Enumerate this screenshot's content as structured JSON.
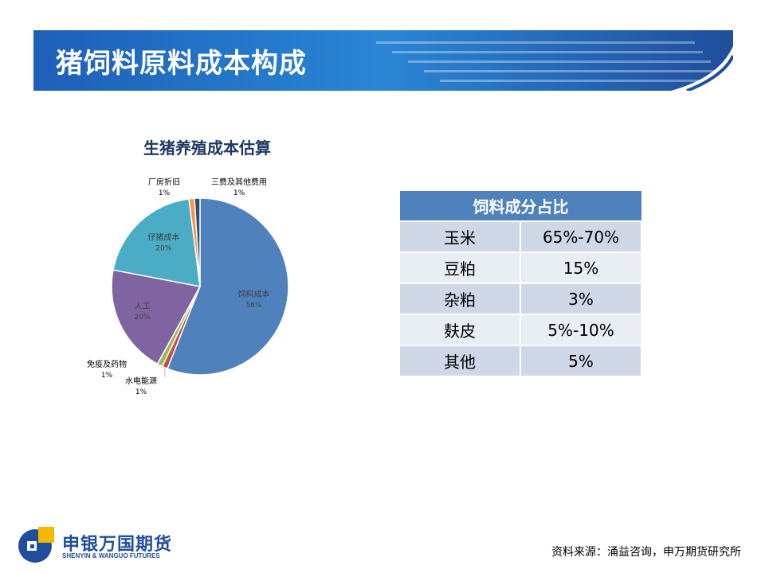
{
  "page": {
    "title": "猪饲料原料成本构成"
  },
  "colors": {
    "banner_dark": "#1f4e9c",
    "banner_light": "#2a8ad8",
    "table_header": "#4f81bd",
    "table_odd": "#d0d8e8",
    "table_even": "#e9edf4"
  },
  "chart_data": {
    "type": "pie",
    "title": "生猪养殖成本估算",
    "categories": [
      "饲料成本",
      "水电能源",
      "免疫及药物",
      "人工",
      "仔猪成本",
      "厂房折旧",
      "三费及其他费用"
    ],
    "values": [
      56,
      1,
      1,
      20,
      20,
      1,
      1
    ],
    "labels": [
      "56%",
      "1%",
      "1%",
      "20%",
      "20%",
      "1%",
      "1%"
    ],
    "colors": [
      "#4f81bd",
      "#c0504d",
      "#9bbb59",
      "#8064a2",
      "#4bacc6",
      "#f79646",
      "#2c4d75"
    ]
  },
  "table": {
    "header": "饲料成分占比",
    "rows": [
      {
        "name": "玉米",
        "value": "65%-70%"
      },
      {
        "name": "豆粕",
        "value": "15%"
      },
      {
        "name": "杂粕",
        "value": "3%"
      },
      {
        "name": "麸皮",
        "value": "5%-10%"
      },
      {
        "name": "其他",
        "value": "5%"
      }
    ]
  },
  "logo": {
    "name_cn": "申银万国期货",
    "name_en": "SHENYIN & WANGUO FUTURES"
  },
  "source": "资料来源：涌益咨询，申万期货研究所"
}
